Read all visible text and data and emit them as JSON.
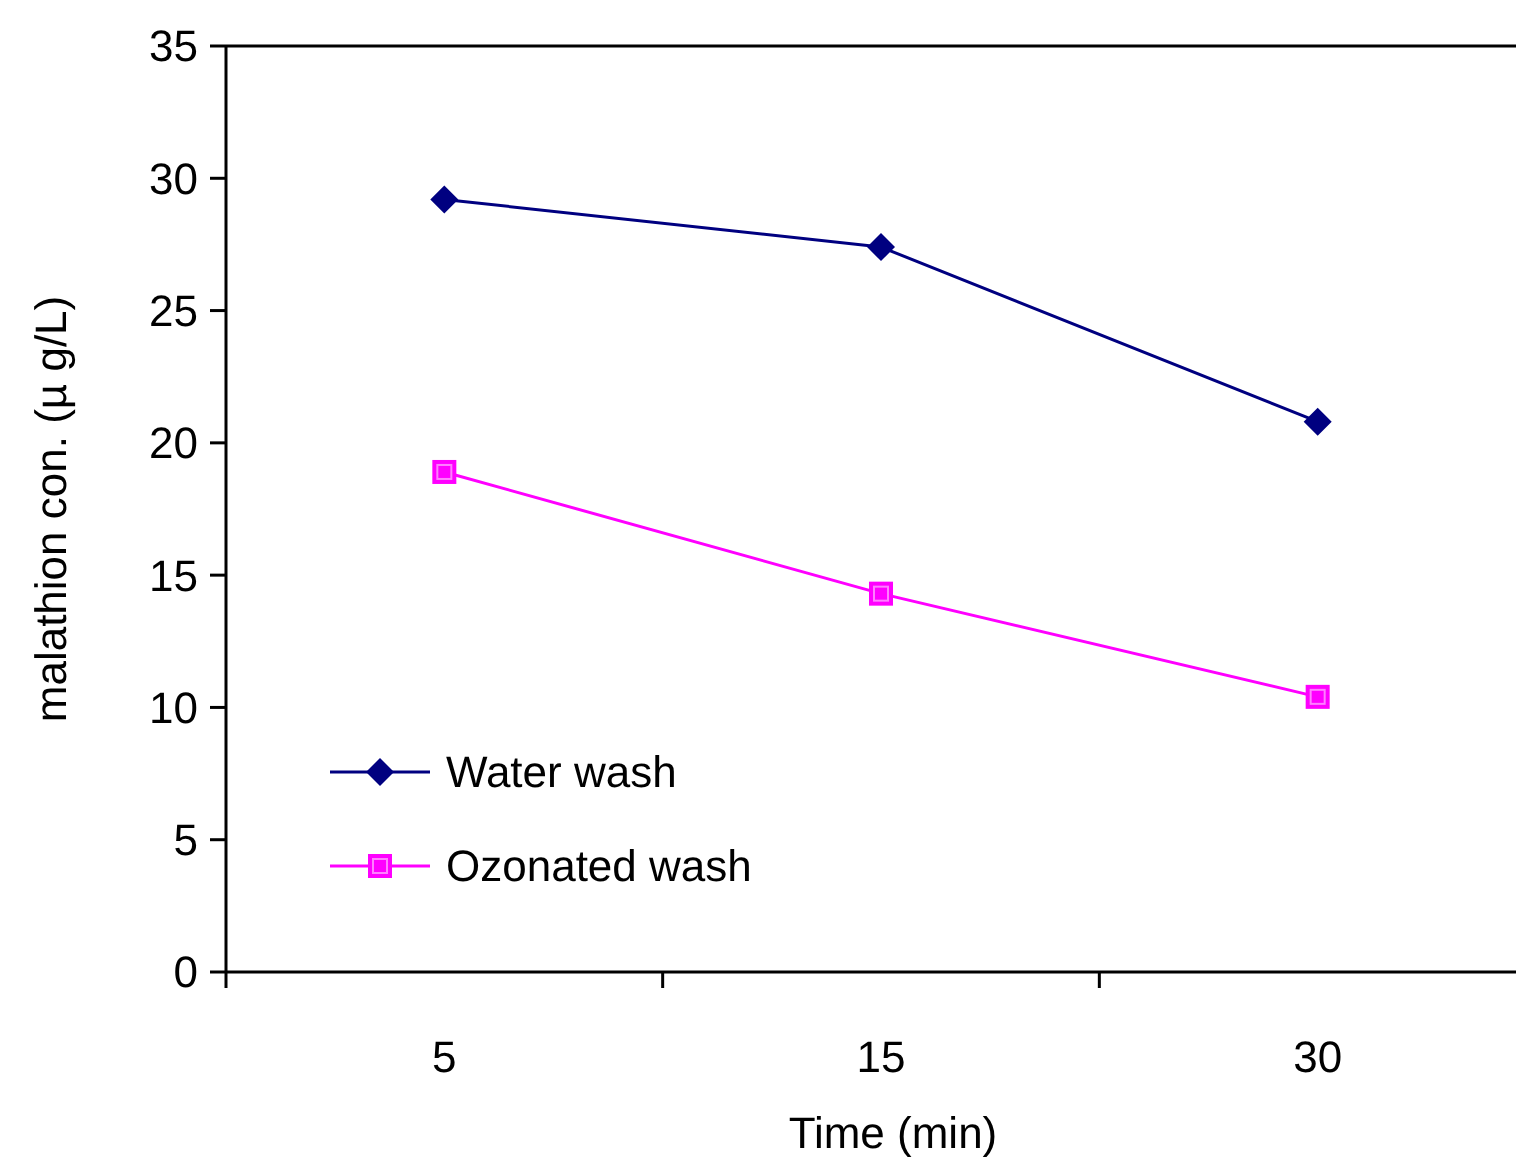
{
  "chart_data": {
    "type": "line",
    "xlabel": "Time (min)",
    "ylabel": "malathion con. (µ g/L)",
    "categories": [
      "5",
      "15",
      "30"
    ],
    "ylim": [
      0,
      35
    ],
    "yticks": [
      0,
      5,
      10,
      15,
      20,
      25,
      30,
      35
    ],
    "grid": false,
    "legend": "bottom left",
    "series": [
      {
        "name": "Water wash",
        "color": "#000080",
        "marker": "diamond",
        "values": [
          29.2,
          27.4,
          20.8
        ]
      },
      {
        "name": "Ozonated wash",
        "color": "#ff00ff",
        "marker": "square",
        "values": [
          18.9,
          14.3,
          10.4
        ]
      }
    ]
  }
}
